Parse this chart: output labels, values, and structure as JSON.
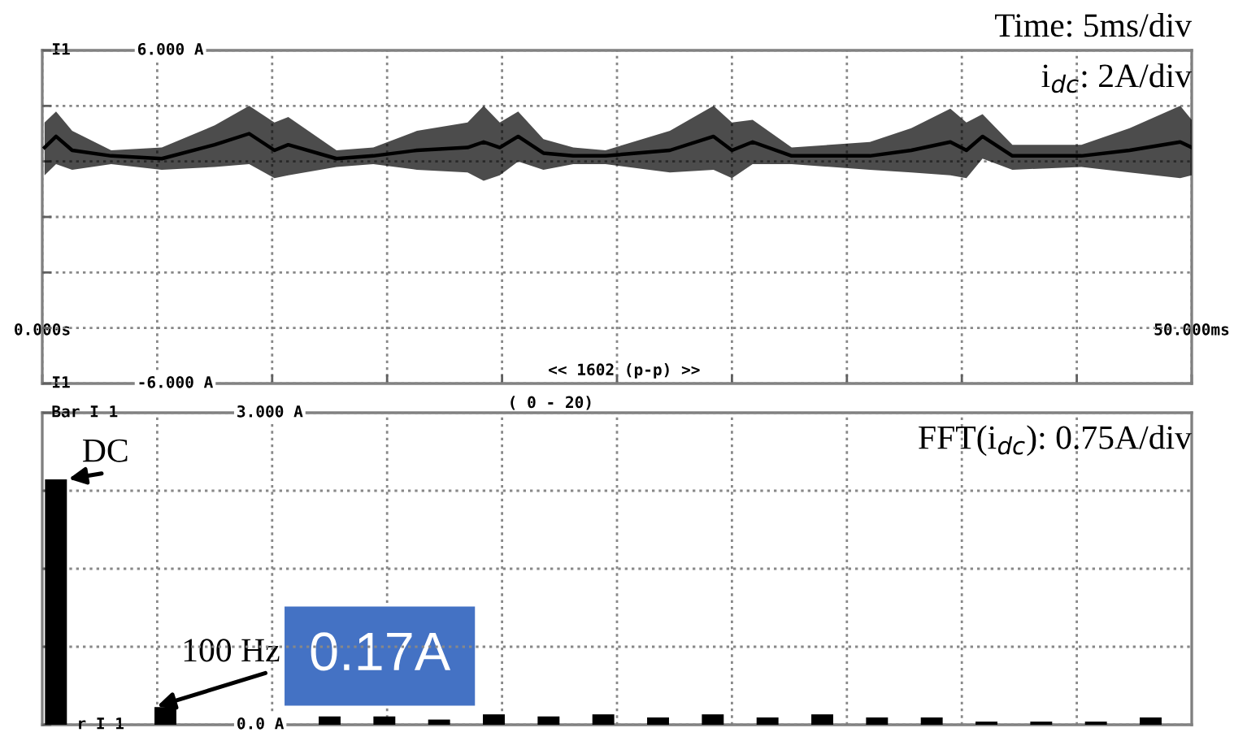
{
  "chart_data": [
    {
      "type": "line",
      "xlim": [
        0,
        50
      ],
      "ylim": [
        -6,
        6
      ],
      "xticks": [
        {
          "value": 0,
          "label": "0.000s"
        },
        {
          "value": 5,
          "label": null
        },
        {
          "value": 10,
          "label": null
        },
        {
          "value": 15,
          "label": null
        },
        {
          "value": 20,
          "label": null
        },
        {
          "value": 25,
          "label": null
        },
        {
          "value": 30,
          "label": null
        },
        {
          "value": 35,
          "label": null
        },
        {
          "value": 40,
          "label": null
        },
        {
          "value": 45,
          "label": null
        },
        {
          "value": 50,
          "label": "50.000ms"
        }
      ],
      "yticks": [
        {
          "value": -6,
          "label": "-6.000 A"
        },
        {
          "value": -4,
          "label": null
        },
        {
          "value": -2,
          "label": null
        },
        {
          "value": 0,
          "label": null
        },
        {
          "value": 2,
          "label": null
        },
        {
          "value": 4,
          "label": null
        },
        {
          "value": 6,
          "label": "6.000 A"
        }
      ],
      "grid": true,
      "line_style": "solid",
      "marker": "none",
      "annotations": [
        "Time: 5ms/div",
        "i$_{dc}$: 2A/div",
        "<< 1602 (p-p) >>",
        "I1",
        "I1"
      ],
      "series": [
        {
          "color": "#000000",
          "x": [
            0.1,
            0.6,
            1.3,
            3.0,
            5.2,
            7.5,
            9.0,
            10.1,
            10.7,
            12.8,
            14.4,
            16.3,
            18.5,
            19.2,
            19.9,
            20.7,
            21.8,
            23.1,
            24.5,
            27.3,
            29.2,
            30.0,
            30.9,
            32.6,
            36.0,
            37.8,
            39.5,
            40.2,
            40.9,
            42.2,
            45.2,
            47.3,
            49.5,
            50
          ],
          "values": [
            2.5,
            2.9,
            2.4,
            2.2,
            2.1,
            2.6,
            3.0,
            2.4,
            2.6,
            2.1,
            2.2,
            2.4,
            2.5,
            2.7,
            2.5,
            2.9,
            2.3,
            2.2,
            2.2,
            2.4,
            2.9,
            2.4,
            2.7,
            2.2,
            2.2,
            2.4,
            2.7,
            2.4,
            2.9,
            2.2,
            2.2,
            2.4,
            2.7,
            2.5
          ],
          "upper": [
            3.4,
            3.8,
            3.1,
            2.4,
            2.5,
            3.3,
            4.0,
            3.4,
            3.6,
            2.4,
            2.5,
            3.1,
            3.4,
            4.0,
            3.4,
            3.8,
            2.8,
            2.5,
            2.4,
            3.1,
            4.0,
            3.4,
            3.5,
            2.5,
            2.7,
            3.2,
            3.9,
            3.4,
            3.7,
            2.6,
            2.6,
            3.2,
            4.0,
            3.5
          ],
          "lower": [
            1.5,
            1.9,
            1.7,
            1.9,
            1.7,
            1.8,
            1.9,
            1.4,
            1.5,
            1.8,
            1.9,
            1.7,
            1.6,
            1.3,
            1.5,
            2.0,
            1.7,
            1.9,
            1.9,
            1.6,
            1.7,
            1.4,
            1.9,
            1.9,
            1.7,
            1.6,
            1.5,
            1.4,
            2.1,
            1.7,
            1.8,
            1.6,
            1.4,
            1.5
          ]
        }
      ]
    },
    {
      "type": "bar",
      "ylim": [
        0,
        3
      ],
      "yticks": [
        {
          "value": 0,
          "label": "0.0 A"
        },
        {
          "value": 0.75,
          "label": null
        },
        {
          "value": 1.5,
          "label": null
        },
        {
          "value": 2.25,
          "label": null
        },
        {
          "value": 3,
          "label": "3.000 A"
        }
      ],
      "grid": true,
      "categories": [
        null,
        null,
        null,
        null,
        null,
        null,
        null,
        null,
        null,
        null,
        null,
        null,
        null,
        null,
        null,
        null,
        null,
        null,
        null,
        null,
        null
      ],
      "color": "#000000",
      "values": [
        2.36,
        0,
        0.17,
        0,
        0,
        0.08,
        0.08,
        0.05,
        0.1,
        0.08,
        0.1,
        0.07,
        0.1,
        0.07,
        0.1,
        0.07,
        0.07,
        0.03,
        0.03,
        0.03,
        0.07
      ],
      "annotations": [
        "FFT(i$_{dc}$): 0.75A/div",
        "( 0 - 20)",
        "DC",
        "100 Hz",
        "0.17A",
        "Bar I 1",
        "r I 1"
      ]
    }
  ]
}
